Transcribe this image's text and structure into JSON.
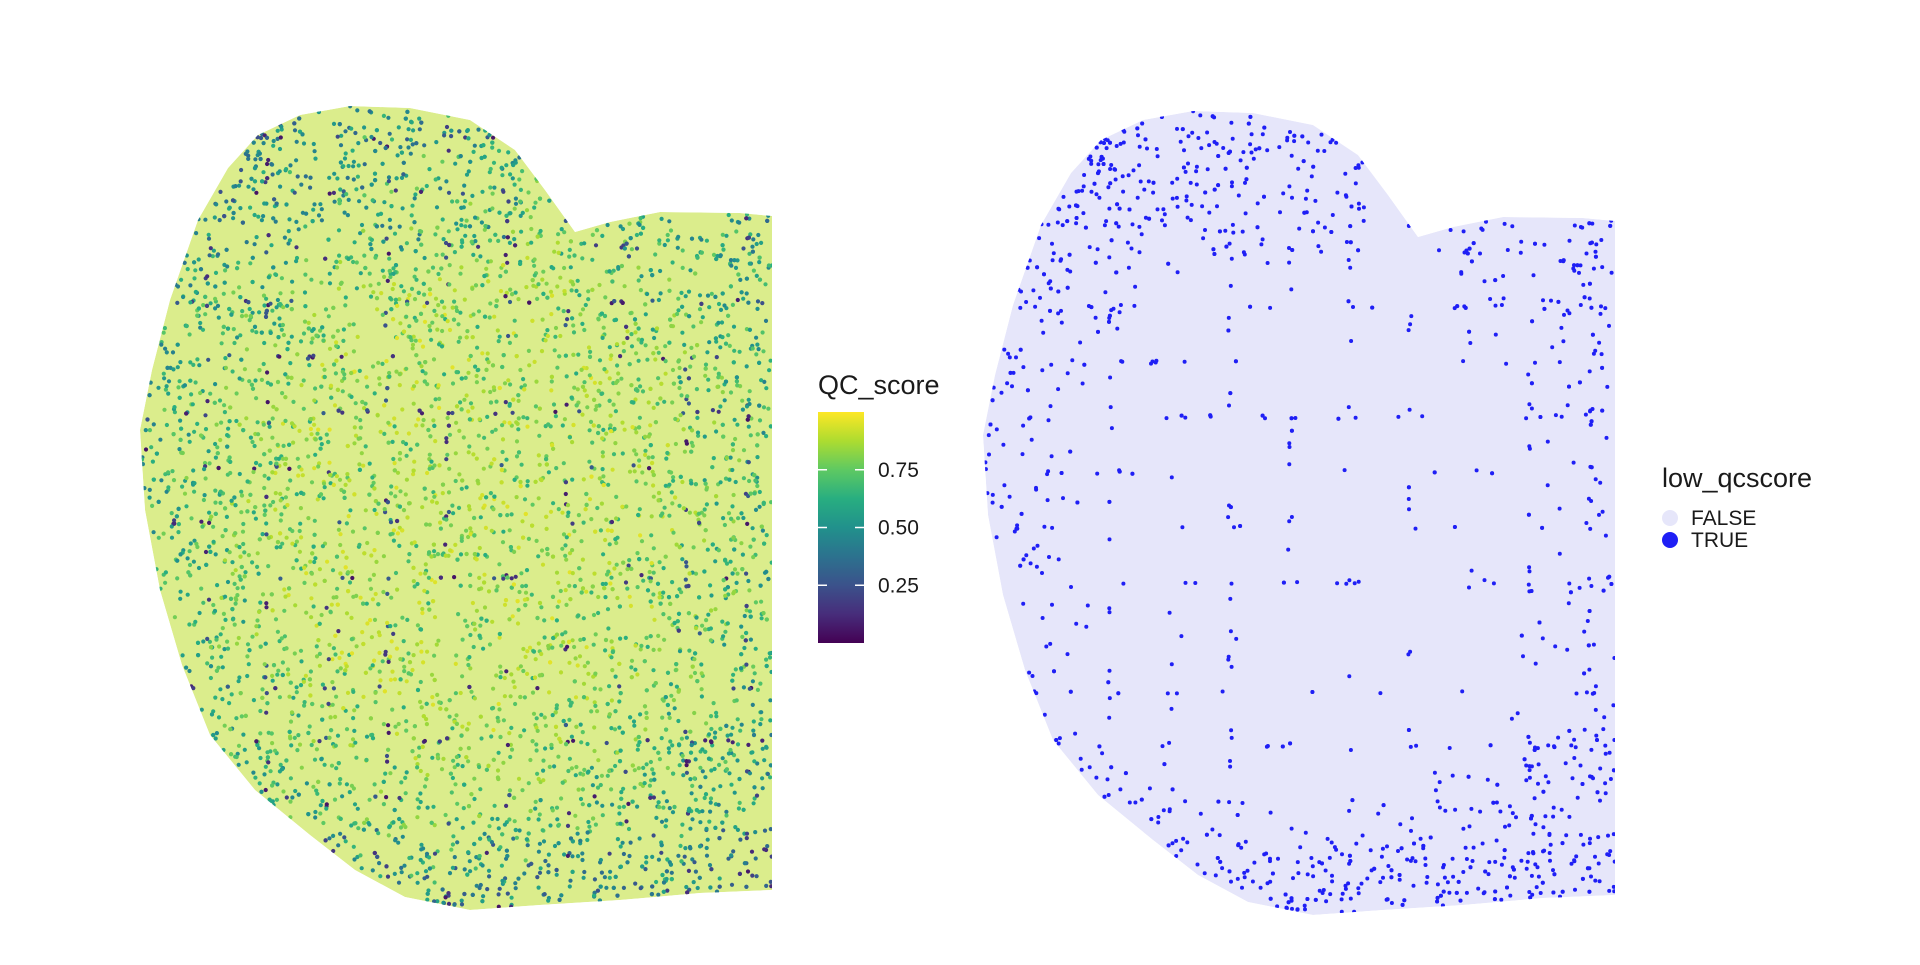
{
  "chart_data": [
    {
      "type": "scatter",
      "title": "",
      "xlabel": "",
      "ylabel": "",
      "grid": false,
      "axes_visible": false,
      "color_variable": "QC_score",
      "colormap": "viridis",
      "color_range": [
        0,
        1
      ],
      "legend": {
        "title": "QC_score",
        "position": "right",
        "ticks": [
          {
            "value": 0.25,
            "label": "0.25"
          },
          {
            "value": 0.5,
            "label": "0.50"
          },
          {
            "value": 0.75,
            "label": "0.75"
          }
        ]
      }
    },
    {
      "type": "scatter",
      "title": "",
      "xlabel": "",
      "ylabel": "",
      "grid": false,
      "axes_visible": false,
      "color_variable": "low_qcscore",
      "legend": {
        "title": "low_qcscore",
        "position": "right",
        "entries": [
          {
            "label": "FALSE",
            "color": "#e6e6fa"
          },
          {
            "label": "TRUE",
            "color": "#1f1ff5"
          }
        ]
      }
    }
  ]
}
